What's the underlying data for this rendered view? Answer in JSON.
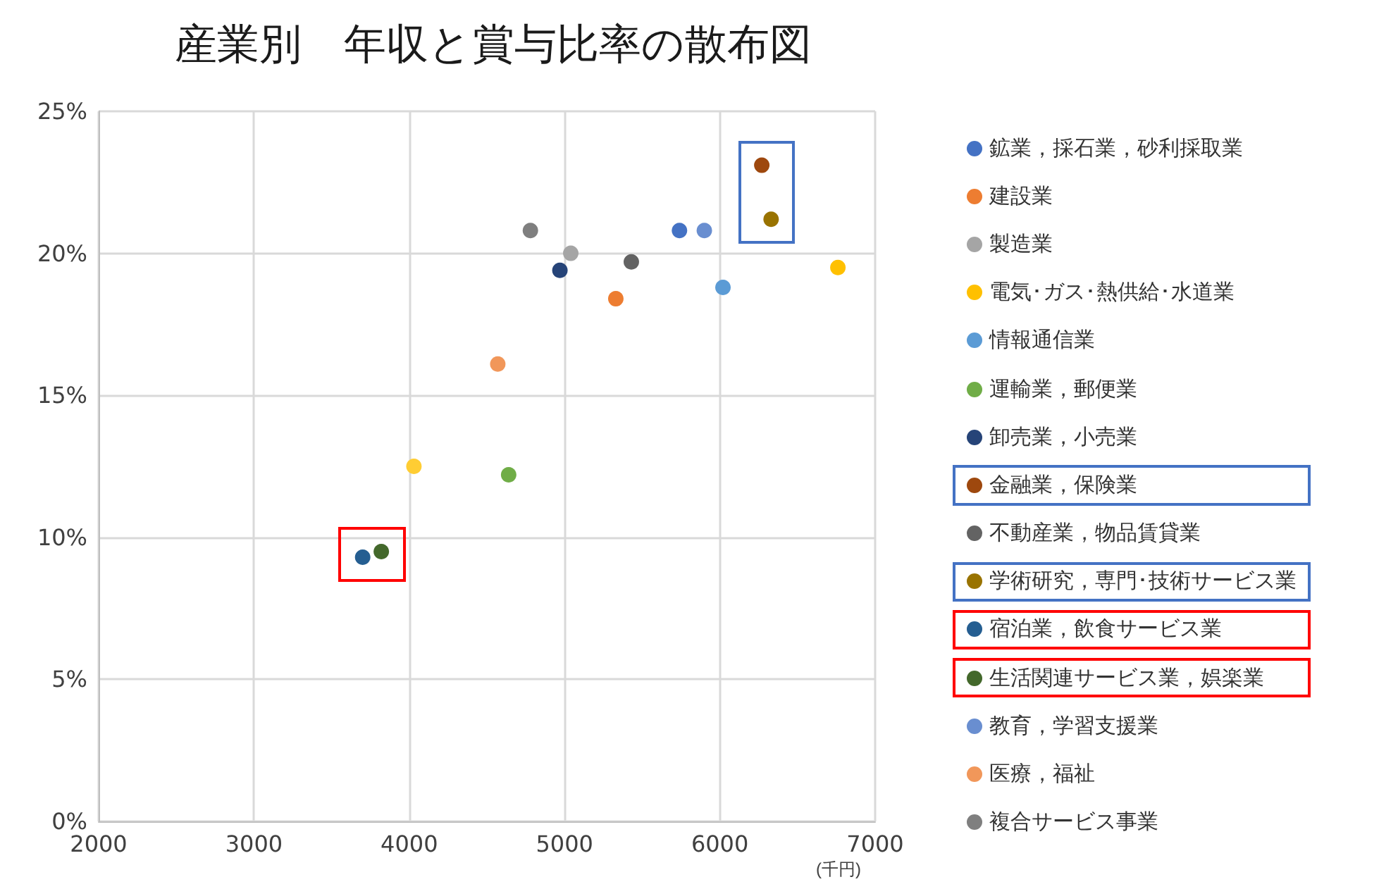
{
  "chart_data": {
    "type": "scatter",
    "title": "産業別　年収と賞与比率の散布図",
    "xlabel": "(千円)",
    "xlim": [
      2000,
      7000
    ],
    "xticks": [
      2000,
      3000,
      4000,
      5000,
      6000,
      7000
    ],
    "ylim": [
      0,
      25
    ],
    "yticks": [
      {
        "value": 0,
        "label": "0%"
      },
      {
        "value": 5,
        "label": "5%"
      },
      {
        "value": 10,
        "label": "10%"
      },
      {
        "value": 15,
        "label": "15%"
      },
      {
        "value": 20,
        "label": "20%"
      },
      {
        "value": 25,
        "label": "25%"
      }
    ],
    "grid": true,
    "legend": "right",
    "marker": "circle",
    "series": [
      {
        "name": "鉱業，採石業，砂利採取業",
        "color": "#4472c4",
        "x": [
          5740
        ],
        "values": [
          20.8
        ]
      },
      {
        "name": "建設業",
        "color": "#ed7d31",
        "x": [
          5330
        ],
        "values": [
          18.4
        ]
      },
      {
        "name": "製造業",
        "color": "#a5a5a5",
        "x": [
          5040
        ],
        "values": [
          20.0
        ]
      },
      {
        "name": "電気･ガス･熱供給･水道業",
        "color": "#ffc000",
        "x": [
          6760
        ],
        "values": [
          19.5
        ]
      },
      {
        "name": "情報通信業",
        "color": "#5b9bd5",
        "x": [
          6020
        ],
        "values": [
          18.8
        ]
      },
      {
        "name": "運輸業，郵便業",
        "color": "#70ad47",
        "x": [
          4640
        ],
        "values": [
          12.2
        ]
      },
      {
        "name": "卸売業，小売業",
        "color": "#264478",
        "x": [
          4970
        ],
        "values": [
          19.4
        ]
      },
      {
        "name": "金融業，保険業",
        "color": "#9e480e",
        "x": [
          6270
        ],
        "values": [
          23.1
        ]
      },
      {
        "name": "不動産業，物品賃貸業",
        "color": "#636363",
        "x": [
          5430
        ],
        "values": [
          19.7
        ]
      },
      {
        "name": "学術研究，専門･技術サービス業",
        "color": "#997300",
        "x": [
          6330
        ],
        "values": [
          21.2
        ]
      },
      {
        "name": "宿泊業，飲食サービス業",
        "color": "#255e91",
        "x": [
          3700
        ],
        "values": [
          9.3
        ]
      },
      {
        "name": "生活関連サービス業，娯楽業",
        "color": "#43682b",
        "x": [
          3820
        ],
        "values": [
          9.5
        ]
      },
      {
        "name": "教育，学習支援業",
        "color": "#698ed0",
        "x": [
          5900
        ],
        "values": [
          20.8
        ]
      },
      {
        "name": "医療，福祉",
        "color": "#f1975a",
        "x": [
          4570
        ],
        "values": [
          16.1
        ]
      },
      {
        "name": "複合サービス事業",
        "color": "#7f7f7f",
        "x": [
          4780
        ],
        "values": [
          20.8
        ]
      },
      {
        "color": "#ffcd33",
        "x": [
          4030
        ],
        "values": [
          12.5
        ]
      }
    ]
  }
}
